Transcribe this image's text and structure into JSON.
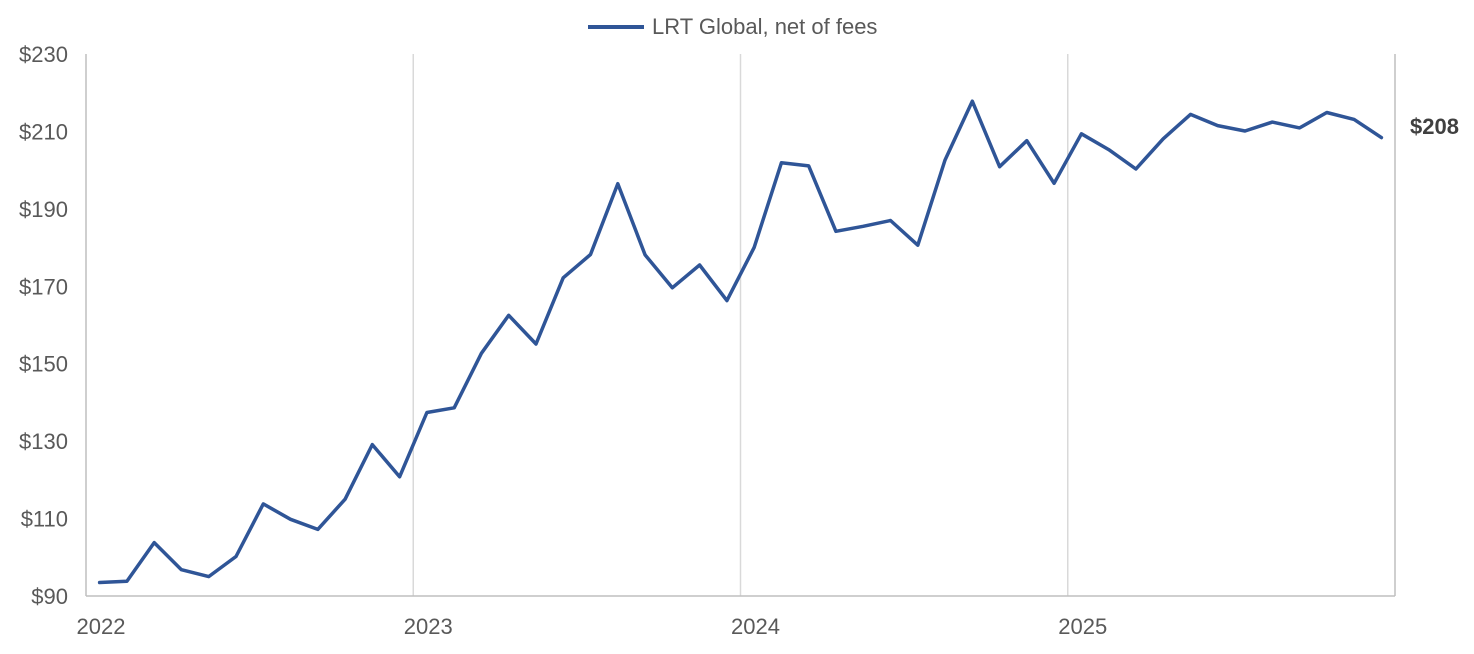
{
  "chart_data": {
    "type": "line",
    "series": [
      {
        "name": "LRT Global, net of fees",
        "color": "#2F5597",
        "values": [
          93.5,
          93.8,
          103.8,
          96.8,
          95.0,
          100.2,
          113.8,
          109.8,
          107.2,
          115.0,
          129.1,
          120.8,
          137.4,
          138.6,
          152.7,
          162.5,
          155.1,
          172.2,
          178.2,
          196.5,
          178.1,
          169.6,
          175.5,
          166.3,
          180.0,
          201.9,
          201.1,
          184.2,
          185.5,
          187.0,
          180.6,
          202.6,
          217.8,
          200.9,
          207.6,
          196.6,
          209.4,
          205.3,
          200.3,
          208.1,
          214.4,
          211.5,
          210.1,
          212.4,
          210.9,
          214.9,
          213.1,
          208.4
        ]
      }
    ],
    "x_tick_labels": [
      "2022",
      "2023",
      "2024",
      "2025"
    ],
    "y_ticks": [
      90,
      110,
      130,
      150,
      170,
      190,
      210,
      230
    ],
    "y_tick_prefix": "$",
    "ylim": [
      90,
      230
    ],
    "end_label": "$208",
    "legend": {
      "position": "top-center",
      "entries": [
        "LRT Global, net of fees"
      ]
    },
    "grid": {
      "vertical": true,
      "horizontal": false,
      "color": "#D9D9D9"
    },
    "axis_color": "#BFBFBF"
  }
}
